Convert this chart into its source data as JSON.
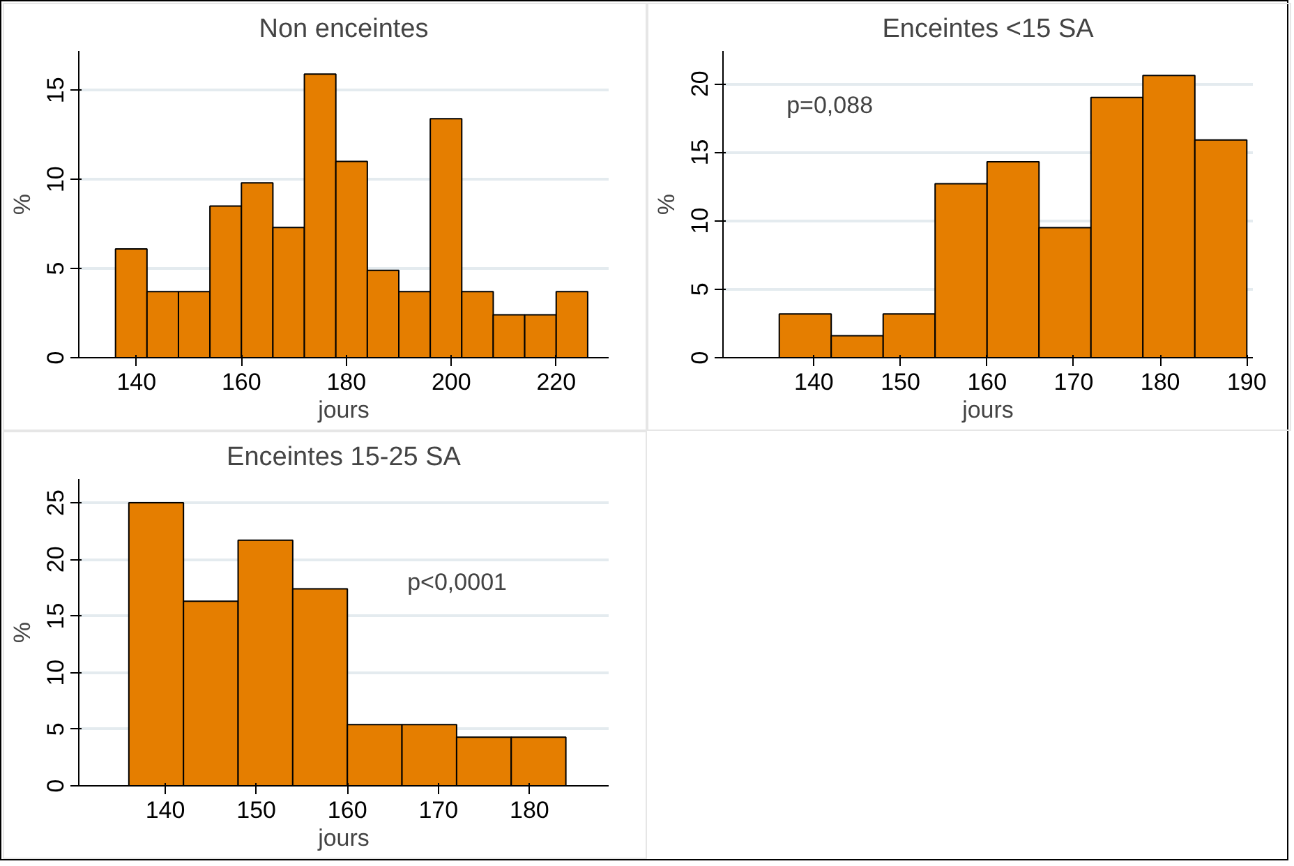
{
  "chart_data": [
    {
      "type": "histogram",
      "title": "Non enceintes",
      "xlabel": "jours",
      "ylabel": "%",
      "bins": [
        136,
        142,
        148,
        154,
        160,
        166,
        172,
        178,
        184,
        190,
        196,
        202,
        208,
        214,
        220,
        226
      ],
      "values": [
        6.1,
        3.7,
        3.7,
        8.5,
        9.8,
        7.3,
        15.9,
        11,
        4.9,
        3.7,
        13.4,
        3.7,
        2.4,
        2.4,
        3.7
      ],
      "color": "#e57e00",
      "xlim": [
        129,
        230
      ],
      "xticks": [
        140,
        160,
        180,
        200,
        220
      ],
      "ylim": [
        0,
        17.2
      ],
      "yticks": [
        0,
        5,
        10,
        15
      ],
      "grid": "y"
    },
    {
      "type": "histogram",
      "title": "Enceintes <15 SA",
      "xlabel": "jours",
      "ylabel": "%",
      "bins": [
        136,
        142,
        148,
        154,
        160,
        166,
        172,
        178,
        184,
        190
      ],
      "values": [
        3.2,
        1.6,
        3.2,
        12.7,
        14.3,
        9.5,
        19,
        20.6,
        15.9
      ],
      "color": "#e57e00",
      "xlim": [
        129.5,
        190.7
      ],
      "xticks": [
        140,
        150,
        160,
        170,
        180,
        190
      ],
      "ylim": [
        0,
        22.4
      ],
      "yticks": [
        0,
        5,
        10,
        15,
        20
      ],
      "grid": "y",
      "annotations": [
        "p=0,088"
      ]
    },
    {
      "type": "histogram",
      "title": "Enceintes 15-25 SA",
      "xlabel": "jours",
      "ylabel": "%",
      "bins": [
        136,
        142,
        148,
        154,
        160,
        166,
        172,
        178,
        184
      ],
      "values": [
        25,
        16.3,
        21.7,
        17.4,
        5.4,
        5.4,
        4.3,
        4.3
      ],
      "color": "#e57e00",
      "xlim": [
        130.5,
        188.7
      ],
      "xticks": [
        140,
        150,
        160,
        170,
        180
      ],
      "ylim": [
        0,
        27.1
      ],
      "yticks": [
        0,
        5,
        10,
        15,
        20,
        25
      ],
      "grid": "y",
      "annotations": [
        "p<0,0001"
      ]
    }
  ]
}
